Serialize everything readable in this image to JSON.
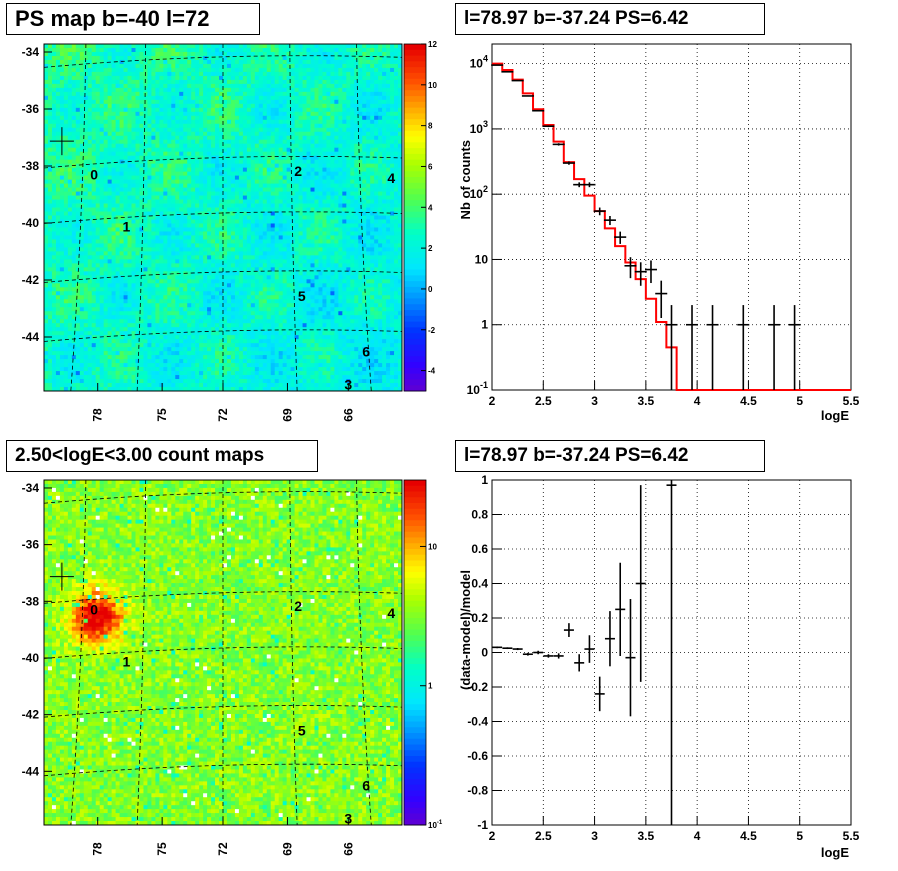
{
  "panels": {
    "top_left_title": "PS map b=-40 l=72",
    "top_right_title": "l=78.97 b=-37.24 PS=6.42",
    "bottom_left_title": "2.50<logE<3.00 count maps",
    "bottom_right_title": "l=78.97 b=-37.24 PS=6.42"
  },
  "colors": {
    "data_marker": "#000000",
    "model_line": "#ff0000",
    "grid": "#000000"
  },
  "chart_data": [
    {
      "type": "heatmap",
      "name": "ps_map",
      "title": "PS map b=-40 l=72",
      "ylabel_ticks": [
        "-34",
        "-36",
        "-38",
        "-40",
        "-42",
        "-44"
      ],
      "xlabel_ticks": [
        "78",
        "75",
        "72",
        "69",
        "66"
      ],
      "colorbar": {
        "scale": "linear",
        "range": [
          -5,
          12
        ],
        "ticks": [
          "12",
          "10",
          "8",
          "6",
          "4",
          "2",
          "0",
          "-2",
          "-4"
        ]
      },
      "sources": [
        {
          "label": "0"
        },
        {
          "label": "1"
        },
        {
          "label": "2"
        },
        {
          "label": "3"
        },
        {
          "label": "4"
        },
        {
          "label": "5"
        },
        {
          "label": "6"
        }
      ],
      "marker": "cross at l=78.97 b=-37.24",
      "background_level": "≈1–3 (cyan/light green)"
    },
    {
      "type": "line",
      "name": "spectrum",
      "title": "l=78.97 b=-37.24 PS=6.42",
      "xlabel": "logE",
      "ylabel": "Nb of counts",
      "xlim": [
        2,
        5.5
      ],
      "ylim": [
        0.1,
        20000
      ],
      "yscale": "log",
      "x_ticks": [
        "2",
        "2.5",
        "3",
        "3.5",
        "4",
        "4.5",
        "5",
        "5.5"
      ],
      "y_ticks": [
        "10^-1",
        "1",
        "10",
        "10^2",
        "10^3",
        "10^4"
      ],
      "grid": true,
      "series": [
        {
          "style": "data points with error bars",
          "x": [
            2.05,
            2.15,
            2.25,
            2.35,
            2.45,
            2.55,
            2.65,
            2.75,
            2.85,
            2.95,
            3.05,
            3.15,
            3.25,
            3.35,
            3.45,
            3.55,
            3.65,
            3.75,
            3.95,
            4.15,
            4.45,
            4.75,
            4.95
          ],
          "y": [
            9500,
            7500,
            5500,
            3200,
            1900,
            1100,
            580,
            300,
            140,
            140,
            55,
            40,
            22,
            8,
            6.5,
            7,
            3,
            1,
            1,
            1,
            1,
            1,
            1
          ]
        },
        {
          "style": "model histogram (red)",
          "x": [
            2.0,
            2.1,
            2.2,
            2.3,
            2.4,
            2.5,
            2.6,
            2.7,
            2.8,
            2.9,
            3.0,
            3.1,
            3.2,
            3.3,
            3.4,
            3.5,
            3.6,
            3.7,
            3.8,
            5.5
          ],
          "y": [
            10000,
            8000,
            5700,
            3500,
            2000,
            1150,
            640,
            310,
            170,
            95,
            55,
            30,
            16,
            9,
            5,
            2.5,
            1.1,
            0.45,
            0.1,
            0.1
          ]
        }
      ]
    },
    {
      "type": "heatmap",
      "name": "count_map",
      "title": "2.50<logE<3.00 count maps",
      "ylabel_ticks": [
        "-34",
        "-36",
        "-38",
        "-40",
        "-42",
        "-44"
      ],
      "xlabel_ticks": [
        "78",
        "75",
        "72",
        "69",
        "66"
      ],
      "colorbar": {
        "scale": "log",
        "range": [
          0.1,
          30
        ],
        "ticks": [
          "10",
          "1",
          "10^-1"
        ]
      },
      "sources": [
        {
          "label": "0"
        },
        {
          "label": "1"
        },
        {
          "label": "2"
        },
        {
          "label": "3"
        },
        {
          "label": "4"
        },
        {
          "label": "5"
        },
        {
          "label": "6"
        }
      ],
      "bright_spot": "near source 0"
    },
    {
      "type": "scatter",
      "name": "residuals",
      "title": "l=78.97 b=-37.24 PS=6.42",
      "xlabel": "logE",
      "ylabel": "(data-model)/model",
      "xlim": [
        2,
        5.5
      ],
      "ylim": [
        -1,
        1
      ],
      "x_ticks": [
        "2",
        "2.5",
        "3",
        "3.5",
        "4",
        "4.5",
        "5",
        "5.5"
      ],
      "y_ticks": [
        "-1",
        "-0.8",
        "-0.6",
        "-0.4",
        "-0.2",
        "0",
        "0.2",
        "0.4",
        "0.6",
        "0.8",
        "1"
      ],
      "grid": true,
      "points": [
        {
          "x": 2.05,
          "y": 0.03,
          "err": 0.005
        },
        {
          "x": 2.15,
          "y": 0.025,
          "err": 0.005
        },
        {
          "x": 2.25,
          "y": 0.02,
          "err": 0.006
        },
        {
          "x": 2.35,
          "y": -0.01,
          "err": 0.008
        },
        {
          "x": 2.45,
          "y": 0.0,
          "err": 0.01
        },
        {
          "x": 2.55,
          "y": -0.02,
          "err": 0.01
        },
        {
          "x": 2.65,
          "y": -0.02,
          "err": 0.015
        },
        {
          "x": 2.75,
          "y": 0.13,
          "err": 0.04
        },
        {
          "x": 2.85,
          "y": -0.06,
          "err": 0.05
        },
        {
          "x": 2.95,
          "y": 0.02,
          "err": 0.08
        },
        {
          "x": 3.05,
          "y": -0.24,
          "err": 0.1
        },
        {
          "x": 3.15,
          "y": 0.08,
          "err": 0.16
        },
        {
          "x": 3.25,
          "y": 0.25,
          "err": 0.27
        },
        {
          "x": 3.35,
          "y": -0.03,
          "err": 0.34
        },
        {
          "x": 3.45,
          "y": 0.4,
          "err": 0.57
        },
        {
          "x": 3.75,
          "y": 0.97,
          "err": 1.97
        }
      ]
    }
  ]
}
